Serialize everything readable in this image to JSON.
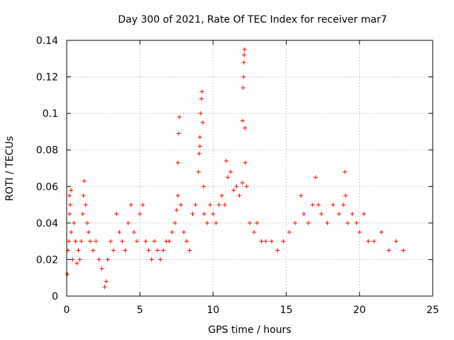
{
  "chart_data": {
    "type": "scatter",
    "title": "Day 300 of 2021, Rate Of TEC Index for receiver mar7",
    "xlabel": "GPS time / hours",
    "ylabel": "ROTI / TECUs",
    "xlim": [
      0,
      25
    ],
    "ylim": [
      0,
      0.14
    ],
    "x_ticks": [
      0,
      5,
      10,
      15,
      20,
      25
    ],
    "x_tick_labels": [
      "0",
      "5",
      "10",
      "15",
      "20",
      "25"
    ],
    "y_ticks": [
      0,
      0.02,
      0.04,
      0.06,
      0.08,
      0.1,
      0.12,
      0.14
    ],
    "y_tick_labels": [
      "0",
      "0.02",
      "0.04",
      "0.06",
      "0.08",
      "0.1",
      "0.12",
      "0.14"
    ],
    "grid": true,
    "marker": "+",
    "color": "#ff0000",
    "series": [
      {
        "name": "ROTI",
        "points": [
          [
            0.05,
            0.012
          ],
          [
            0.1,
            0.025
          ],
          [
            0.15,
            0.03
          ],
          [
            0.2,
            0.045
          ],
          [
            0.2,
            0.055
          ],
          [
            0.25,
            0.05
          ],
          [
            0.3,
            0.035
          ],
          [
            0.3,
            0.058
          ],
          [
            0.4,
            0.02
          ],
          [
            0.5,
            0.04
          ],
          [
            0.6,
            0.03
          ],
          [
            0.7,
            0.018
          ],
          [
            0.8,
            0.025
          ],
          [
            0.9,
            0.02
          ],
          [
            1.0,
            0.03
          ],
          [
            1.1,
            0.045
          ],
          [
            1.15,
            0.055
          ],
          [
            1.2,
            0.063
          ],
          [
            1.3,
            0.05
          ],
          [
            1.4,
            0.04
          ],
          [
            1.5,
            0.035
          ],
          [
            1.6,
            0.03
          ],
          [
            1.8,
            0.025
          ],
          [
            2.0,
            0.03
          ],
          [
            2.2,
            0.02
          ],
          [
            2.4,
            0.015
          ],
          [
            2.6,
            0.005
          ],
          [
            2.7,
            0.008
          ],
          [
            2.8,
            0.02
          ],
          [
            3.0,
            0.03
          ],
          [
            3.2,
            0.025
          ],
          [
            3.4,
            0.045
          ],
          [
            3.6,
            0.035
          ],
          [
            3.8,
            0.03
          ],
          [
            4.0,
            0.025
          ],
          [
            4.2,
            0.04
          ],
          [
            4.4,
            0.05
          ],
          [
            4.6,
            0.035
          ],
          [
            4.8,
            0.03
          ],
          [
            5.0,
            0.045
          ],
          [
            5.2,
            0.05
          ],
          [
            5.4,
            0.03
          ],
          [
            5.6,
            0.025
          ],
          [
            5.8,
            0.02
          ],
          [
            6.0,
            0.03
          ],
          [
            6.2,
            0.025
          ],
          [
            6.4,
            0.02
          ],
          [
            6.6,
            0.025
          ],
          [
            6.8,
            0.03
          ],
          [
            7.0,
            0.03
          ],
          [
            7.2,
            0.035
          ],
          [
            7.4,
            0.04
          ],
          [
            7.5,
            0.047
          ],
          [
            7.6,
            0.055
          ],
          [
            7.6,
            0.073
          ],
          [
            7.65,
            0.089
          ],
          [
            7.7,
            0.098
          ],
          [
            7.8,
            0.05
          ],
          [
            8.0,
            0.035
          ],
          [
            8.2,
            0.03
          ],
          [
            8.4,
            0.025
          ],
          [
            8.6,
            0.045
          ],
          [
            8.8,
            0.05
          ],
          [
            9.0,
            0.068
          ],
          [
            9.05,
            0.078
          ],
          [
            9.1,
            0.082
          ],
          [
            9.1,
            0.087
          ],
          [
            9.15,
            0.1
          ],
          [
            9.2,
            0.108
          ],
          [
            9.25,
            0.112
          ],
          [
            9.3,
            0.095
          ],
          [
            9.35,
            0.06
          ],
          [
            9.4,
            0.045
          ],
          [
            9.6,
            0.04
          ],
          [
            9.8,
            0.05
          ],
          [
            10.0,
            0.045
          ],
          [
            10.2,
            0.04
          ],
          [
            10.4,
            0.05
          ],
          [
            10.6,
            0.055
          ],
          [
            10.8,
            0.05
          ],
          [
            10.9,
            0.074
          ],
          [
            11.0,
            0.065
          ],
          [
            11.2,
            0.068
          ],
          [
            11.4,
            0.058
          ],
          [
            11.6,
            0.06
          ],
          [
            11.8,
            0.055
          ],
          [
            12.0,
            0.062
          ],
          [
            12.02,
            0.096
          ],
          [
            12.05,
            0.114
          ],
          [
            12.08,
            0.12
          ],
          [
            12.1,
            0.128
          ],
          [
            12.12,
            0.132
          ],
          [
            12.15,
            0.135
          ],
          [
            12.18,
            0.092
          ],
          [
            12.2,
            0.073
          ],
          [
            12.3,
            0.06
          ],
          [
            12.5,
            0.04
          ],
          [
            12.8,
            0.035
          ],
          [
            13.0,
            0.04
          ],
          [
            13.3,
            0.03
          ],
          [
            13.6,
            0.03
          ],
          [
            14.0,
            0.03
          ],
          [
            14.4,
            0.025
          ],
          [
            14.8,
            0.03
          ],
          [
            15.2,
            0.035
          ],
          [
            15.6,
            0.04
          ],
          [
            16.0,
            0.055
          ],
          [
            16.2,
            0.045
          ],
          [
            16.5,
            0.04
          ],
          [
            16.8,
            0.05
          ],
          [
            17.0,
            0.065
          ],
          [
            17.2,
            0.05
          ],
          [
            17.4,
            0.045
          ],
          [
            17.8,
            0.04
          ],
          [
            18.2,
            0.05
          ],
          [
            18.6,
            0.045
          ],
          [
            18.9,
            0.05
          ],
          [
            19.0,
            0.068
          ],
          [
            19.05,
            0.055
          ],
          [
            19.2,
            0.04
          ],
          [
            19.5,
            0.045
          ],
          [
            19.8,
            0.04
          ],
          [
            20.0,
            0.035
          ],
          [
            20.3,
            0.045
          ],
          [
            20.6,
            0.03
          ],
          [
            21.0,
            0.03
          ],
          [
            21.5,
            0.035
          ],
          [
            22.0,
            0.025
          ],
          [
            22.5,
            0.03
          ],
          [
            23.0,
            0.025
          ]
        ]
      }
    ]
  }
}
